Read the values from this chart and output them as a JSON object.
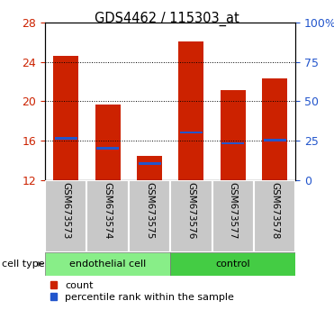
{
  "title": "GDS4462 / 115303_at",
  "samples": [
    "GSM673573",
    "GSM673574",
    "GSM673575",
    "GSM673576",
    "GSM673577",
    "GSM673578"
  ],
  "group_labels": [
    "endothelial cell",
    "control"
  ],
  "ymin": 12,
  "ymax": 28,
  "yticks": [
    12,
    16,
    20,
    24,
    28
  ],
  "right_yticks": [
    0,
    25,
    50,
    75,
    100
  ],
  "bar_tops": [
    24.6,
    19.7,
    14.5,
    26.1,
    21.1,
    22.3
  ],
  "blue_markers": [
    16.25,
    15.25,
    13.7,
    16.85,
    15.75,
    16.05
  ],
  "bar_color": "#CC2200",
  "blue_color": "#2255CC",
  "tick_label_color_left": "#CC2200",
  "tick_label_color_right": "#2255CC",
  "bar_width": 0.6,
  "sample_box_color": "#C8C8C8",
  "group_color_endothelial": "#88EE88",
  "group_color_control": "#44CC44",
  "legend_labels": [
    "count",
    "percentile rank within the sample"
  ]
}
